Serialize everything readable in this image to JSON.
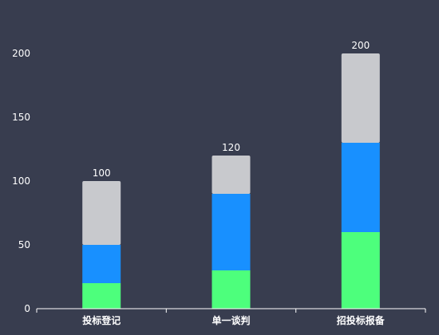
{
  "chart_data": {
    "type": "bar",
    "stacked": true,
    "categories": [
      "投标登记",
      "单一谈判",
      "招投标报备"
    ],
    "series": [
      {
        "values": [
          20,
          30,
          60
        ],
        "color": "#4dff7c"
      },
      {
        "values": [
          30,
          60,
          70
        ],
        "color": "#1890ff"
      },
      {
        "values": [
          50,
          30,
          70
        ],
        "color": "#c8c9cd"
      }
    ],
    "totals": [
      "100",
      "120",
      "200"
    ],
    "y_ticks": [
      "0",
      "50",
      "100",
      "150",
      "200"
    ],
    "ylim": [
      0,
      220
    ],
    "grid": false,
    "legend": "none"
  },
  "colors": {
    "background": "#383d4f",
    "axis": "#ffffff"
  }
}
